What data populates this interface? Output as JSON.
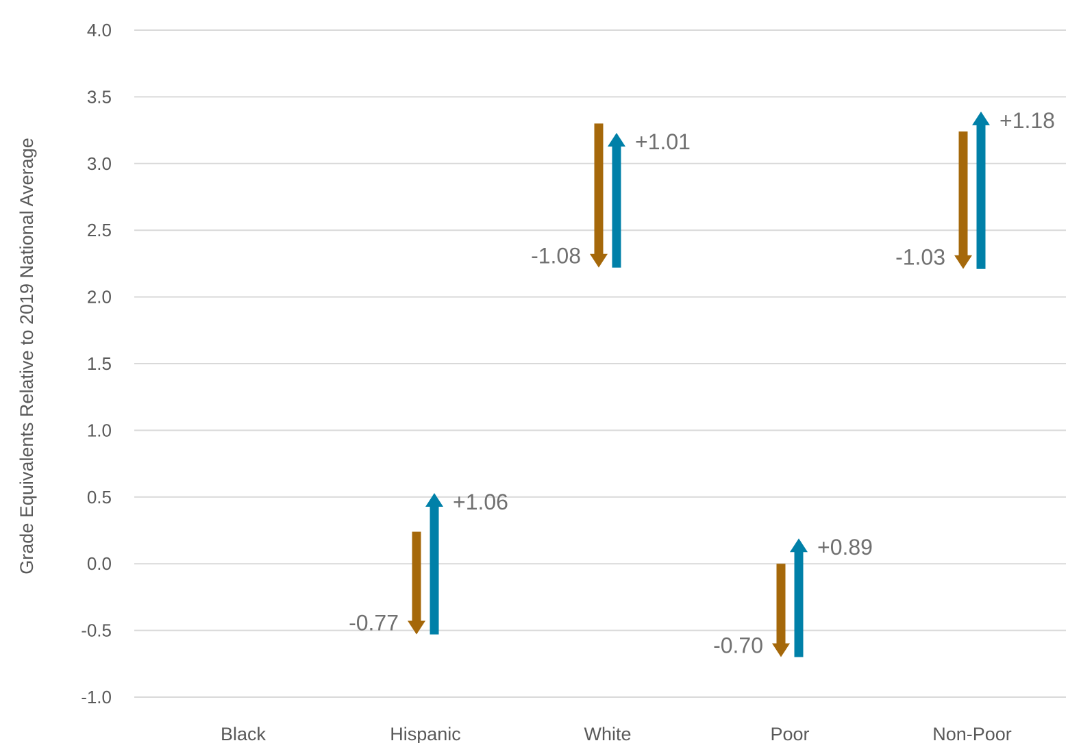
{
  "chart_data": {
    "type": "arrow",
    "title": "",
    "xlabel": "",
    "ylabel": "Grade Equivalents Relative to 2019 National Average",
    "ylim": [
      -1.0,
      4.0
    ],
    "yticks": [
      4.0,
      3.5,
      3.0,
      2.5,
      2.0,
      1.5,
      1.0,
      0.5,
      0.0,
      -0.5,
      -1.0
    ],
    "ytick_labels": [
      "4.0",
      "3.5",
      "3.0",
      "2.5",
      "2.0",
      "1.5",
      "1.0",
      "0.5",
      "0.0",
      "-0.5",
      "-1.0"
    ],
    "grid": true,
    "legend": "none",
    "categories": [
      "Black",
      "Hispanic",
      "White",
      "Poor",
      "Non-Poor"
    ],
    "series": [
      {
        "direction": "down",
        "color": "#A5680A",
        "start": [
          null,
          0.24,
          3.3,
          0.0,
          3.24
        ],
        "end": [
          null,
          -0.53,
          2.22,
          -0.7,
          2.21
        ],
        "labels": [
          null,
          "-0.77",
          "-1.08",
          "-0.70",
          "-1.03"
        ]
      },
      {
        "direction": "up",
        "color": "#0080A8",
        "start": [
          null,
          -0.53,
          2.22,
          -0.7,
          2.21
        ],
        "end": [
          null,
          0.53,
          3.23,
          0.19,
          3.39
        ],
        "labels": [
          null,
          "+1.06",
          "+1.01",
          "+0.89",
          "+1.18"
        ]
      }
    ]
  }
}
